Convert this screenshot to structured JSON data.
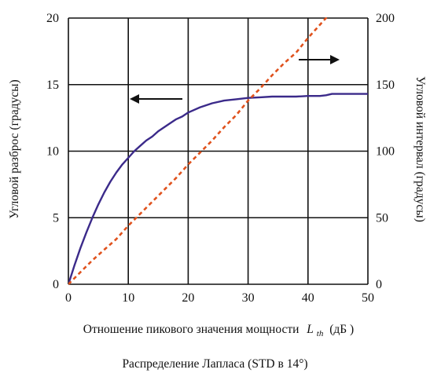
{
  "chart_data": {
    "type": "line",
    "x_ticks": [
      "0",
      "10",
      "20",
      "30",
      "40",
      "50"
    ],
    "y_left_ticks": [
      "0",
      "5",
      "10",
      "15",
      "20"
    ],
    "y_right_ticks": [
      "0",
      "50",
      "100",
      "150",
      "200"
    ],
    "xlim": [
      0,
      50
    ],
    "ylim_left": [
      0,
      20
    ],
    "ylim_right": [
      0,
      200
    ],
    "grid": true,
    "ylabel_left": "Угловой разброс (градусы)",
    "ylabel_right": "Угловой интервал (градусы)",
    "xlabel_main": "Отношение пикового значения мощности",
    "xlabel_symbol": "L",
    "xlabel_subscript": "th",
    "xlabel_unit": "(дБ )",
    "caption": "Распределение Лапласа (STD в 14°)",
    "series": [
      {
        "axis": "left",
        "color": "#3b2a8a",
        "style": "solid",
        "x": [
          0,
          1,
          2,
          3,
          4,
          5,
          6,
          7,
          8,
          9,
          10,
          11,
          12,
          13,
          14,
          15,
          16,
          17,
          18,
          19,
          20,
          22,
          24,
          26,
          28,
          30,
          32,
          34,
          36,
          38,
          40,
          42,
          43,
          44,
          46,
          48,
          50
        ],
        "y": [
          0,
          1.4,
          2.7,
          3.9,
          5.0,
          6.0,
          6.9,
          7.7,
          8.4,
          9.0,
          9.5,
          10.0,
          10.4,
          10.8,
          11.1,
          11.5,
          11.8,
          12.1,
          12.4,
          12.6,
          12.9,
          13.3,
          13.6,
          13.8,
          13.9,
          14.0,
          14.05,
          14.1,
          14.1,
          14.1,
          14.15,
          14.15,
          14.2,
          14.3,
          14.3,
          14.3,
          14.3
        ]
      },
      {
        "axis": "right",
        "color": "#e0521d",
        "style": "dashed",
        "x": [
          0,
          2,
          4,
          6,
          8,
          10,
          12,
          14,
          16,
          18,
          20,
          22,
          24,
          26,
          28,
          30,
          32,
          34,
          36,
          38,
          40,
          42,
          43,
          44
        ],
        "y": [
          0,
          9,
          18,
          26,
          34,
          44,
          53,
          62,
          71,
          80,
          90,
          99,
          108,
          118,
          127,
          138,
          147,
          157,
          166,
          174,
          185,
          195,
          200,
          205
        ]
      }
    ]
  }
}
